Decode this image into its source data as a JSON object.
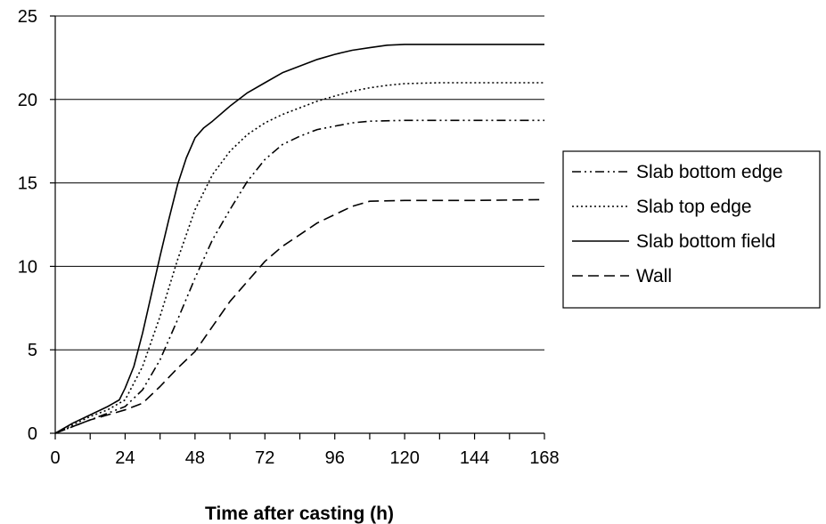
{
  "chart_data": {
    "type": "line",
    "title": "",
    "xlabel": "Time after casting (h)",
    "ylabel": "",
    "xlim": [
      0,
      168
    ],
    "ylim": [
      0,
      25
    ],
    "xticks": [
      0,
      24,
      48,
      72,
      96,
      120,
      144,
      168
    ],
    "yticks": [
      0,
      5,
      10,
      15,
      20,
      25
    ],
    "grid": "horizontal",
    "legend_position": "right",
    "series": [
      {
        "name": "Slab bottom edge",
        "style": "dash-dot-dot",
        "x": [
          0,
          6,
          12,
          18,
          24,
          30,
          36,
          42,
          48,
          54,
          60,
          66,
          72,
          78,
          84,
          90,
          96,
          102,
          108,
          120,
          132,
          144,
          168
        ],
        "y": [
          0,
          0.4,
          0.8,
          1.2,
          1.6,
          2.6,
          4.4,
          6.8,
          9.3,
          11.6,
          13.4,
          15.1,
          16.4,
          17.3,
          17.8,
          18.2,
          18.4,
          18.6,
          18.7,
          18.75,
          18.75,
          18.75,
          18.75
        ]
      },
      {
        "name": "Slab top edge",
        "style": "dotted",
        "x": [
          0,
          6,
          12,
          18,
          24,
          30,
          36,
          42,
          48,
          54,
          60,
          66,
          72,
          78,
          84,
          90,
          96,
          102,
          108,
          114,
          120,
          132,
          144,
          168
        ],
        "y": [
          0,
          0.5,
          1.0,
          1.4,
          2.0,
          4.0,
          7.0,
          10.4,
          13.4,
          15.5,
          16.9,
          17.9,
          18.6,
          19.1,
          19.5,
          19.9,
          20.2,
          20.5,
          20.7,
          20.85,
          20.95,
          21.0,
          21.0,
          21.0
        ]
      },
      {
        "name": "Slab bottom field",
        "style": "solid",
        "x": [
          0,
          6,
          12,
          18,
          22,
          24,
          27,
          30,
          33,
          36,
          39,
          42,
          45,
          48,
          51,
          54,
          60,
          66,
          72,
          78,
          84,
          90,
          96,
          102,
          108,
          114,
          120,
          132,
          144,
          168
        ],
        "y": [
          0,
          0.6,
          1.1,
          1.6,
          2.0,
          2.7,
          4.0,
          6.0,
          8.3,
          10.6,
          12.8,
          14.9,
          16.5,
          17.7,
          18.3,
          18.7,
          19.6,
          20.4,
          21.0,
          21.6,
          22.0,
          22.4,
          22.7,
          22.95,
          23.1,
          23.25,
          23.3,
          23.3,
          23.3,
          23.3
        ]
      },
      {
        "name": "Wall",
        "style": "dashed",
        "x": [
          0,
          6,
          12,
          18,
          24,
          30,
          36,
          42,
          48,
          54,
          60,
          66,
          72,
          78,
          84,
          90,
          96,
          102,
          108,
          120,
          132,
          144,
          168
        ],
        "y": [
          0,
          0.4,
          0.8,
          1.1,
          1.4,
          1.8,
          2.8,
          3.9,
          4.9,
          6.4,
          7.9,
          9.1,
          10.3,
          11.2,
          11.9,
          12.6,
          13.1,
          13.6,
          13.9,
          13.95,
          13.95,
          13.95,
          14.0
        ]
      }
    ]
  }
}
